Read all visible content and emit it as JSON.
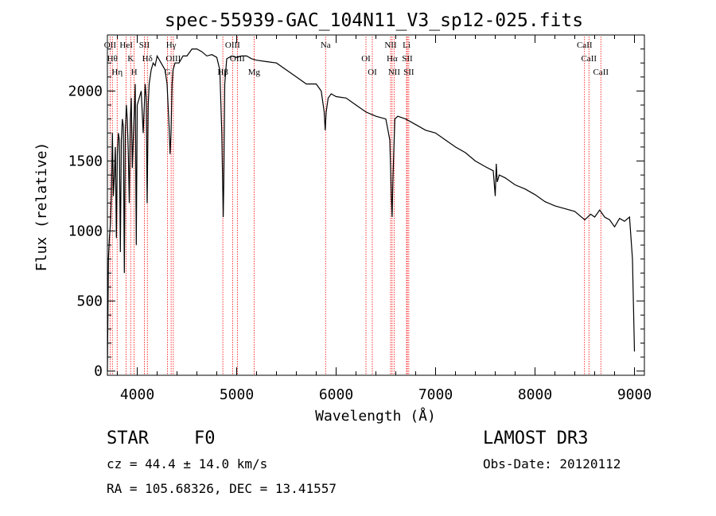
{
  "chart_data": {
    "type": "line",
    "title": "spec-55939-GAC_104N11_V3_sp12-025.fits",
    "xlabel": "Wavelength (Å)",
    "ylabel": "Flux (relative)",
    "xlim": [
      3700,
      9100
    ],
    "ylim": [
      -30,
      2400
    ],
    "xticks": [
      4000,
      5000,
      6000,
      7000,
      8000,
      9000
    ],
    "yticks": [
      0,
      500,
      1000,
      1500,
      2000
    ],
    "xtick_labels": [
      "4000",
      "5000",
      "6000",
      "7000",
      "8000",
      "9000"
    ],
    "ytick_labels": [
      "0",
      "500",
      "1000",
      "1500",
      "2000"
    ],
    "line_color": "#ff0000",
    "series": [
      {
        "name": "flux",
        "color": "#000000",
        "x": [
          3700,
          3710,
          3720,
          3730,
          3740,
          3750,
          3760,
          3770,
          3780,
          3790,
          3800,
          3810,
          3820,
          3830,
          3840,
          3850,
          3860,
          3870,
          3880,
          3890,
          3900,
          3910,
          3920,
          3930,
          3940,
          3950,
          3960,
          3970,
          3980,
          3990,
          4000,
          4020,
          4040,
          4060,
          4080,
          4090,
          4100,
          4110,
          4120,
          4140,
          4160,
          4180,
          4200,
          4240,
          4280,
          4300,
          4320,
          4330,
          4340,
          4350,
          4360,
          4380,
          4420,
          4460,
          4500,
          4550,
          4600,
          4650,
          4700,
          4750,
          4800,
          4830,
          4850,
          4860,
          4865,
          4870,
          4880,
          4900,
          4950,
          5000,
          5050,
          5100,
          5150,
          5200,
          5300,
          5400,
          5500,
          5600,
          5700,
          5800,
          5850,
          5880,
          5890,
          5900,
          5920,
          5950,
          6000,
          6100,
          6200,
          6300,
          6400,
          6500,
          6540,
          6555,
          6563,
          6570,
          6590,
          6620,
          6700,
          6800,
          6900,
          7000,
          7100,
          7200,
          7300,
          7400,
          7500,
          7580,
          7600,
          7610,
          7620,
          7640,
          7700,
          7800,
          7900,
          8000,
          8100,
          8200,
          8300,
          8400,
          8500,
          8560,
          8600,
          8650,
          8700,
          8750,
          8800,
          8850,
          8900,
          8950,
          8980,
          9000
        ],
        "values": [
          0,
          800,
          950,
          1050,
          1250,
          1700,
          1250,
          1400,
          1600,
          950,
          1550,
          1700,
          1650,
          850,
          1650,
          1800,
          1750,
          700,
          1700,
          1900,
          1800,
          1550,
          1200,
          1800,
          1950,
          1450,
          1650,
          1850,
          2050,
          900,
          1900,
          1950,
          2000,
          1700,
          2050,
          1950,
          1200,
          1900,
          2050,
          2150,
          2200,
          2180,
          2250,
          2200,
          2150,
          2050,
          1750,
          1550,
          1700,
          2050,
          2150,
          2200,
          2200,
          2250,
          2250,
          2300,
          2300,
          2280,
          2250,
          2260,
          2240,
          2150,
          1700,
          1300,
          1100,
          1350,
          2050,
          2230,
          2250,
          2240,
          2250,
          2250,
          2230,
          2220,
          2210,
          2200,
          2150,
          2100,
          2050,
          2050,
          2000,
          1850,
          1720,
          1850,
          1950,
          1980,
          1960,
          1950,
          1900,
          1850,
          1820,
          1800,
          1650,
          1250,
          1100,
          1350,
          1800,
          1820,
          1800,
          1760,
          1720,
          1700,
          1650,
          1600,
          1560,
          1500,
          1460,
          1430,
          1250,
          1480,
          1350,
          1400,
          1380,
          1330,
          1300,
          1260,
          1210,
          1180,
          1160,
          1140,
          1080,
          1120,
          1100,
          1150,
          1100,
          1080,
          1030,
          1090,
          1070,
          1100,
          800,
          140
        ]
      }
    ],
    "lines": [
      {
        "x": 3727,
        "label": "OII"
      },
      {
        "x": 3750,
        "label": "Hθ"
      },
      {
        "x": 3798,
        "label": "Hη"
      },
      {
        "x": 3889,
        "label": "HeI"
      },
      {
        "x": 3934,
        "label": "K"
      },
      {
        "x": 3969,
        "label": "H"
      },
      {
        "x": 4072,
        "label": "SII"
      },
      {
        "x": 4102,
        "label": "Hδ"
      },
      {
        "x": 4304,
        "label": "G"
      },
      {
        "x": 4341,
        "label": "Hγ"
      },
      {
        "x": 4363,
        "label": "OIII"
      },
      {
        "x": 4861,
        "label": "Hβ"
      },
      {
        "x": 4959,
        "label": "OIII"
      },
      {
        "x": 5007,
        "label": "OIII"
      },
      {
        "x": 5175,
        "label": "Mg"
      },
      {
        "x": 5894,
        "label": "Na"
      },
      {
        "x": 6300,
        "label": "OI"
      },
      {
        "x": 6364,
        "label": "OI"
      },
      {
        "x": 6548,
        "label": "NII"
      },
      {
        "x": 6563,
        "label": "Hα"
      },
      {
        "x": 6583,
        "label": "NII"
      },
      {
        "x": 6708,
        "label": "Li"
      },
      {
        "x": 6716,
        "label": "SII"
      },
      {
        "x": 6731,
        "label": "SII"
      },
      {
        "x": 8498,
        "label": "CaII"
      },
      {
        "x": 8542,
        "label": "CaII"
      },
      {
        "x": 8662,
        "label": "CaII"
      }
    ]
  },
  "info": {
    "object_type": "STAR",
    "subclass": "F0",
    "survey": "LAMOST DR3",
    "redshift": "cz = 44.4 ± 14.0 km/s",
    "obs_date": "Obs-Date: 20120112",
    "coords": "RA = 105.68326, DEC =  13.41557"
  }
}
